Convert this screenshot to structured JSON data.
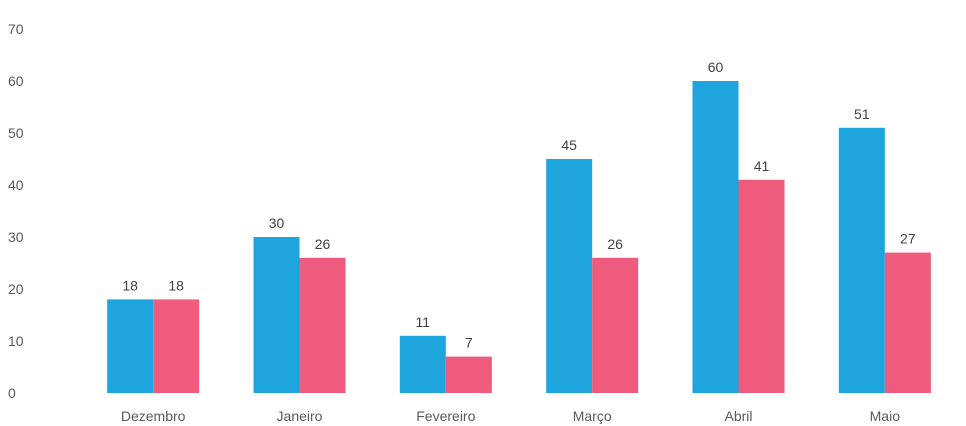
{
  "chart_data": {
    "type": "bar",
    "categories": [
      "Dezembro",
      "Janeiro",
      "Fevereiro",
      "Março",
      "Abril",
      "Maio"
    ],
    "series": [
      {
        "color": "#1fa5de",
        "values": [
          18,
          30,
          11,
          45,
          60,
          51
        ]
      },
      {
        "color": "#ef5b7c",
        "values": [
          18,
          26,
          7,
          26,
          41,
          27
        ]
      }
    ],
    "yticks": [
      "0",
      "10",
      "20",
      "30",
      "40",
      "50",
      "60",
      "70"
    ],
    "ylim": [
      0,
      70
    ],
    "grid": false,
    "legend": "none",
    "title": "",
    "xlabel": "",
    "ylabel": ""
  }
}
